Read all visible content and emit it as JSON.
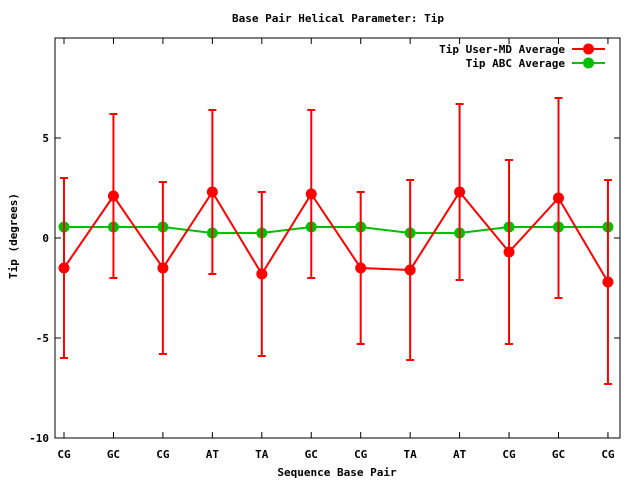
{
  "chart_data": {
    "type": "line",
    "title": "Base Pair Helical Parameter: Tip",
    "xlabel": "Sequence Base Pair",
    "ylabel": "Tip (degrees)",
    "categories": [
      "CG",
      "GC",
      "CG",
      "AT",
      "TA",
      "GC",
      "CG",
      "TA",
      "AT",
      "CG",
      "GC",
      "CG"
    ],
    "ylim": [
      -10,
      10
    ],
    "yticks": [
      -10,
      -5,
      0,
      5
    ],
    "ytick_labels": [
      "-10",
      "-5",
      "0",
      "5"
    ],
    "grid": false,
    "legend_position": "top-right",
    "series": [
      {
        "name": "Tip User-MD Average",
        "color": "#ff0000",
        "values": [
          -1.5,
          2.1,
          -1.5,
          2.3,
          -1.8,
          2.2,
          -1.5,
          -1.6,
          2.3,
          -0.7,
          2.0,
          -2.2
        ],
        "error": [
          4.5,
          4.1,
          4.3,
          4.1,
          4.1,
          4.2,
          3.8,
          4.5,
          4.4,
          4.6,
          5.0,
          5.1
        ]
      },
      {
        "name": "Tip ABC Average",
        "color": "#00c000",
        "values": [
          0.55,
          0.55,
          0.55,
          0.25,
          0.25,
          0.55,
          0.55,
          0.25,
          0.25,
          0.55,
          0.55,
          0.55
        ]
      }
    ]
  }
}
